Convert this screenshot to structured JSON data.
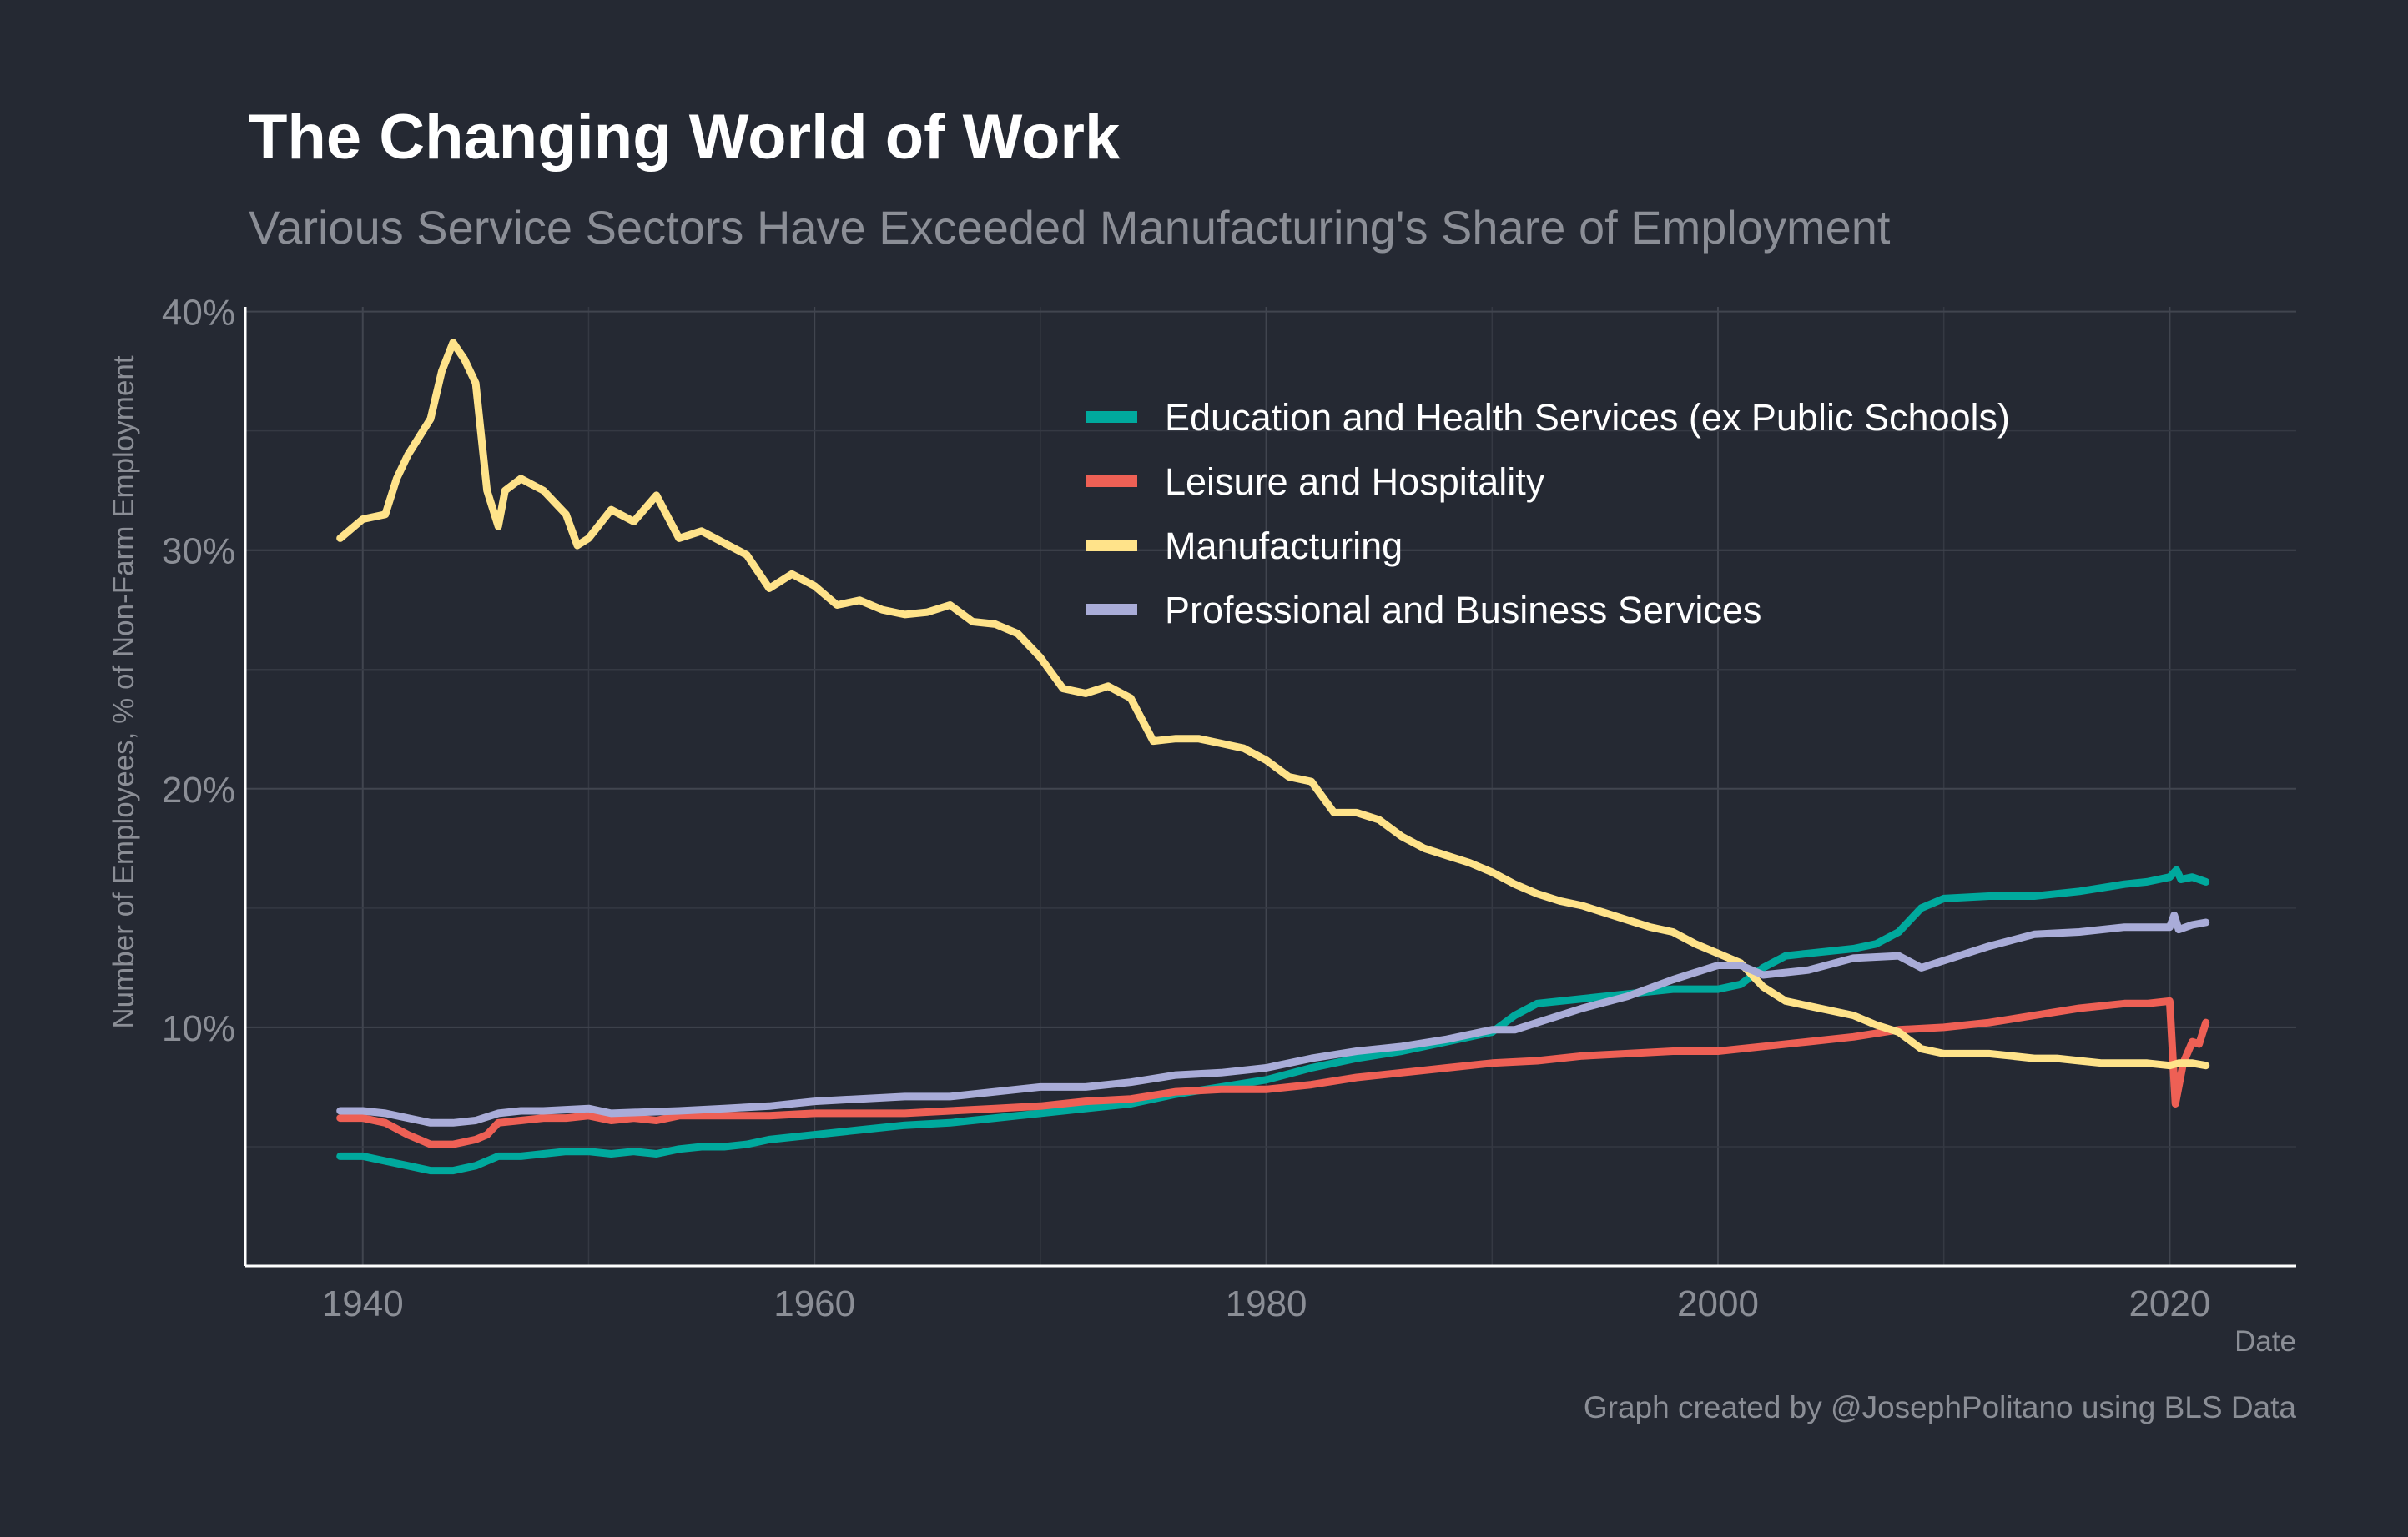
{
  "chart_data": {
    "type": "line",
    "title": "The Changing World of Work",
    "subtitle": "Various Service Sectors Have Exceeded Manufacturing's Share of Employment",
    "xlabel": "Date",
    "ylabel": "Number of Employees, % of Non-Farm Employment",
    "caption": "Graph created by @JosephPolitano using BLS Data",
    "xlim": [
      1934.8,
      2025.6
    ],
    "ylim": [
      0,
      40
    ],
    "x_ticks": [
      1940,
      1960,
      1980,
      2000,
      2020
    ],
    "x_tick_labels": [
      "1940",
      "1960",
      "1980",
      "2000",
      "2020"
    ],
    "y_ticks": [
      10,
      20,
      30,
      40
    ],
    "y_tick_labels": [
      "10%",
      "20%",
      "30%",
      "40%"
    ],
    "grid": true,
    "legend_position": "top-right",
    "series": [
      {
        "name": "Education and Health Services (ex Public Schools)",
        "color": "#00A99D",
        "x": [
          1939,
          1940,
          1941,
          1942,
          1943,
          1944,
          1945,
          1946,
          1947,
          1948,
          1949,
          1950,
          1951,
          1952,
          1953,
          1954,
          1955,
          1956,
          1957,
          1958,
          1959,
          1960,
          1962,
          1964,
          1966,
          1968,
          1970,
          1972,
          1974,
          1976,
          1978,
          1980,
          1982,
          1984,
          1986,
          1988,
          1990,
          1991,
          1992,
          1994,
          1996,
          1998,
          2000,
          2001,
          2002,
          2003,
          2004,
          2006,
          2007,
          2008,
          2009,
          2010,
          2012,
          2014,
          2016,
          2018,
          2019,
          2020,
          2020.3,
          2020.5,
          2021,
          2021.6
        ],
        "y": [
          4.6,
          4.6,
          4.4,
          4.2,
          4.0,
          4.0,
          4.2,
          4.6,
          4.6,
          4.7,
          4.8,
          4.8,
          4.7,
          4.8,
          4.7,
          4.9,
          5.0,
          5.0,
          5.1,
          5.3,
          5.4,
          5.5,
          5.7,
          5.9,
          6.0,
          6.2,
          6.4,
          6.6,
          6.8,
          7.2,
          7.5,
          7.8,
          8.3,
          8.7,
          9.0,
          9.4,
          9.8,
          10.5,
          11.0,
          11.2,
          11.4,
          11.6,
          11.6,
          11.8,
          12.5,
          13.0,
          13.1,
          13.3,
          13.5,
          14.0,
          15.0,
          15.4,
          15.5,
          15.5,
          15.7,
          16.0,
          16.1,
          16.3,
          16.6,
          16.2,
          16.3,
          16.1
        ]
      },
      {
        "name": "Leisure and Hospitality",
        "color": "#EE6055",
        "x": [
          1939,
          1940,
          1941,
          1942,
          1943,
          1944,
          1945,
          1945.5,
          1946,
          1947,
          1948,
          1949,
          1950,
          1951,
          1952,
          1953,
          1954,
          1956,
          1958,
          1960,
          1962,
          1964,
          1966,
          1968,
          1970,
          1972,
          1974,
          1976,
          1978,
          1980,
          1982,
          1984,
          1986,
          1988,
          1990,
          1992,
          1994,
          1996,
          1998,
          2000,
          2002,
          2004,
          2006,
          2008,
          2010,
          2012,
          2014,
          2016,
          2018,
          2019,
          2020,
          2020.25,
          2020.6,
          2021,
          2021.3,
          2021.6
        ],
        "y": [
          6.2,
          6.2,
          6.0,
          5.5,
          5.1,
          5.1,
          5.3,
          5.5,
          6.0,
          6.1,
          6.2,
          6.2,
          6.3,
          6.1,
          6.2,
          6.1,
          6.3,
          6.3,
          6.3,
          6.4,
          6.4,
          6.4,
          6.5,
          6.6,
          6.7,
          6.9,
          7.0,
          7.3,
          7.4,
          7.4,
          7.6,
          7.9,
          8.1,
          8.3,
          8.5,
          8.6,
          8.8,
          8.9,
          9.0,
          9.0,
          9.2,
          9.4,
          9.6,
          9.9,
          10.0,
          10.2,
          10.5,
          10.8,
          11.0,
          11.0,
          11.1,
          6.8,
          8.5,
          9.4,
          9.3,
          10.2
        ]
      },
      {
        "name": "Manufacturing",
        "color": "#FFE38A",
        "x": [
          1939,
          1940,
          1941,
          1941.5,
          1942,
          1943,
          1943.5,
          1944,
          1944.5,
          1945,
          1945.5,
          1946,
          1946.3,
          1947,
          1948,
          1949,
          1949.5,
          1950,
          1951,
          1952,
          1953,
          1954,
          1955,
          1956,
          1957,
          1958,
          1959,
          1960,
          1961,
          1962,
          1963,
          1964,
          1965,
          1966,
          1967,
          1968,
          1969,
          1970,
          1971,
          1972,
          1973,
          1974,
          1975,
          1976,
          1977,
          1978,
          1979,
          1980,
          1981,
          1982,
          1983,
          1984,
          1985,
          1986,
          1987,
          1988,
          1989,
          1990,
          1991,
          1992,
          1993,
          1994,
          1995,
          1996,
          1997,
          1998,
          1999,
          2000,
          2001,
          2002,
          2003,
          2004,
          2005,
          2006,
          2007,
          2008,
          2009,
          2010,
          2011,
          2012,
          2013,
          2014,
          2015,
          2016,
          2017,
          2018,
          2019,
          2020,
          2020.4,
          2021,
          2021.6
        ],
        "y": [
          30.5,
          31.3,
          31.5,
          33,
          34,
          35.5,
          37.5,
          38.7,
          38,
          37,
          32.5,
          31,
          32.5,
          33,
          32.5,
          31.5,
          30.2,
          30.5,
          31.7,
          31.2,
          32.3,
          30.5,
          30.8,
          30.3,
          29.8,
          28.4,
          29,
          28.5,
          27.7,
          27.9,
          27.5,
          27.3,
          27.4,
          27.7,
          27,
          26.9,
          26.5,
          25.5,
          24.2,
          24,
          24.3,
          23.8,
          22,
          22.1,
          22.1,
          21.9,
          21.7,
          21.2,
          20.5,
          20.3,
          19,
          19,
          18.7,
          18,
          17.5,
          17.2,
          16.9,
          16.5,
          16,
          15.6,
          15.3,
          15.1,
          14.8,
          14.5,
          14.2,
          14,
          13.5,
          13.1,
          12.7,
          11.7,
          11.1,
          10.9,
          10.7,
          10.5,
          10.1,
          9.8,
          9.1,
          8.9,
          8.9,
          8.9,
          8.8,
          8.7,
          8.7,
          8.6,
          8.5,
          8.5,
          8.5,
          8.4,
          8.5,
          8.5,
          8.4
        ]
      },
      {
        "name": "Professional and Business Services",
        "color": "#A9ACD8",
        "x": [
          1939,
          1940,
          1941,
          1942,
          1943,
          1944,
          1945,
          1946,
          1947,
          1948,
          1950,
          1951,
          1954,
          1956,
          1958,
          1960,
          1962,
          1964,
          1966,
          1968,
          1970,
          1972,
          1974,
          1976,
          1978,
          1980,
          1982,
          1984,
          1986,
          1988,
          1990,
          1991,
          1992,
          1994,
          1996,
          1998,
          2000,
          2001,
          2002,
          2004,
          2006,
          2008,
          2009,
          2010,
          2012,
          2014,
          2016,
          2018,
          2019,
          2020,
          2020.2,
          2020.4,
          2021,
          2021.6
        ],
        "y": [
          6.5,
          6.5,
          6.4,
          6.2,
          6.0,
          6.0,
          6.1,
          6.4,
          6.5,
          6.5,
          6.6,
          6.4,
          6.5,
          6.6,
          6.7,
          6.9,
          7.0,
          7.1,
          7.1,
          7.3,
          7.5,
          7.5,
          7.7,
          8.0,
          8.1,
          8.3,
          8.7,
          9.0,
          9.2,
          9.5,
          9.9,
          9.9,
          10.2,
          10.8,
          11.3,
          12.0,
          12.6,
          12.6,
          12.2,
          12.4,
          12.9,
          13.0,
          12.5,
          12.8,
          13.4,
          13.9,
          14.0,
          14.2,
          14.2,
          14.2,
          14.7,
          14.1,
          14.3,
          14.4
        ]
      }
    ]
  }
}
